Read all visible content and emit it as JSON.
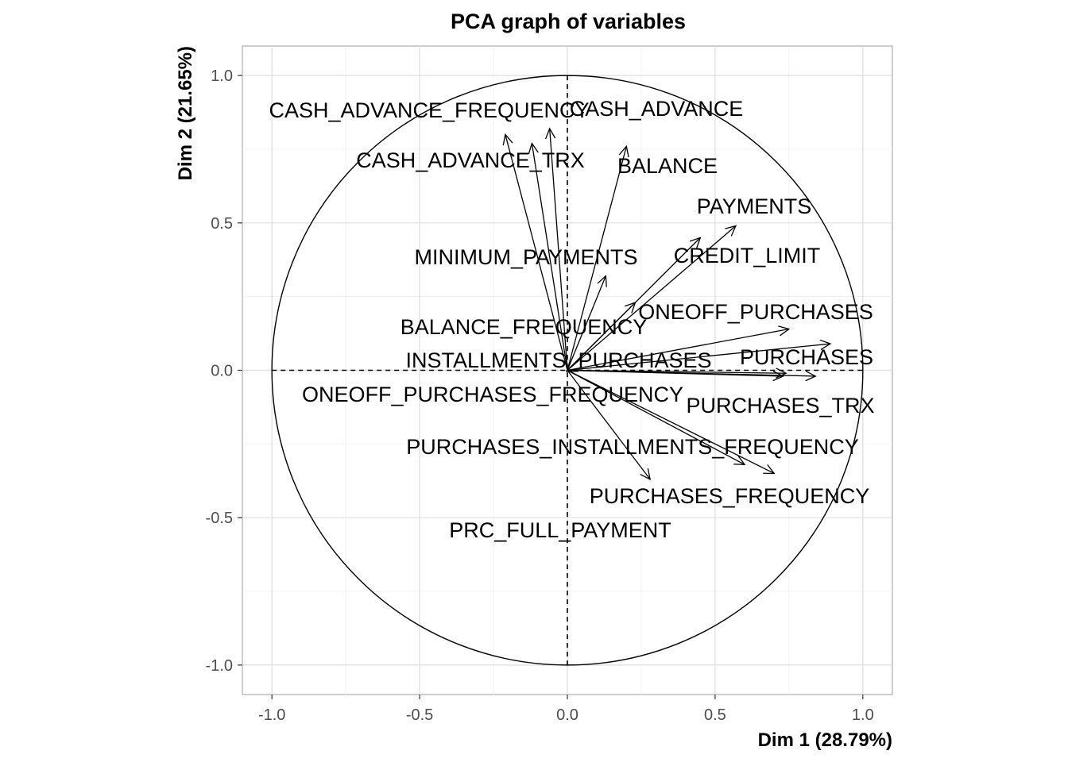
{
  "chart_data": {
    "type": "scatter",
    "title": "PCA graph of variables",
    "xlabel": "Dim 1 (28.79%)",
    "ylabel": "Dim 2 (21.65%)",
    "xlim": [
      -1.1,
      1.1
    ],
    "ylim": [
      -1.1,
      1.1
    ],
    "x_ticks": [
      -1.0,
      -0.5,
      0.0,
      0.5,
      1.0
    ],
    "y_ticks": [
      -1.0,
      -0.5,
      0.0,
      0.5,
      1.0
    ],
    "x_tick_labels": [
      "-1.0",
      "-0.5",
      "0.0",
      "0.5",
      "1.0"
    ],
    "y_tick_labels": [
      "-1.0",
      "-0.5",
      "0.0",
      "0.5",
      "1.0"
    ],
    "grid": true,
    "unit_circle": true,
    "colors": {
      "arrow": "#000000",
      "grid": "#dedede",
      "tick_text": "#4d4d4d",
      "panel_border": "#b3b3b3"
    },
    "variables": [
      {
        "name": "CASH_ADVANCE_FREQUENCY",
        "x": -0.21,
        "y": 0.8
      },
      {
        "name": "CASH_ADVANCE",
        "x": -0.06,
        "y": 0.82
      },
      {
        "name": "CASH_ADVANCE_TRX",
        "x": -0.12,
        "y": 0.77
      },
      {
        "name": "BALANCE",
        "x": 0.2,
        "y": 0.76
      },
      {
        "name": "PAYMENTS",
        "x": 0.57,
        "y": 0.49
      },
      {
        "name": "CREDIT_LIMIT",
        "x": 0.45,
        "y": 0.45
      },
      {
        "name": "MINIMUM_PAYMENTS",
        "x": 0.13,
        "y": 0.32
      },
      {
        "name": "ONEOFF_PURCHASES",
        "x": 0.75,
        "y": 0.14
      },
      {
        "name": "BALANCE_FREQUENCY",
        "x": 0.23,
        "y": 0.23
      },
      {
        "name": "PURCHASES",
        "x": 0.89,
        "y": 0.09
      },
      {
        "name": "INSTALLMENTS_PURCHASES",
        "x": 0.73,
        "y": -0.02
      },
      {
        "name": "PURCHASES_TRX",
        "x": 0.84,
        "y": -0.02
      },
      {
        "name": "ONEOFF_PURCHASES_FREQUENCY",
        "x": 0.74,
        "y": -0.01
      },
      {
        "name": "PURCHASES_INSTALLMENTS_FREQUENCY",
        "x": 0.6,
        "y": -0.32
      },
      {
        "name": "PURCHASES_FREQUENCY",
        "x": 0.7,
        "y": -0.35
      },
      {
        "name": "PRC_FULL_PAYMENT",
        "x": 0.28,
        "y": -0.37
      }
    ]
  }
}
